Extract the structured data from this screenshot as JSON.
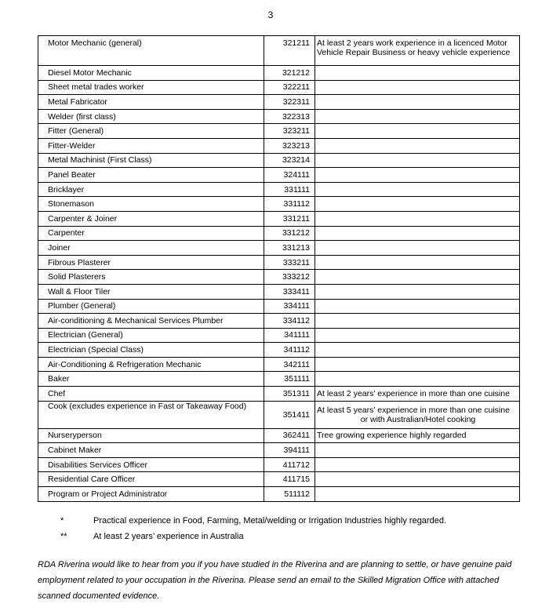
{
  "page_number": "3",
  "rows": [
    {
      "occupation": "Motor Mechanic (general)",
      "code": "321211",
      "requirement": "At least 2 years work experience in a licenced Motor Vehicle Repair Business or heavy vehicle experience"
    },
    {
      "occupation": "Diesel Motor Mechanic",
      "code": "321212",
      "requirement": ""
    },
    {
      "occupation": "Sheet metal trades worker",
      "code": "322211",
      "requirement": ""
    },
    {
      "occupation": "Metal Fabricator",
      "code": "322311",
      "requirement": ""
    },
    {
      "occupation": "Welder (first class)",
      "code": "322313",
      "requirement": ""
    },
    {
      "occupation": "Fitter (General)",
      "code": "323211",
      "requirement": ""
    },
    {
      "occupation": "Fitter-Welder",
      "code": "323213",
      "requirement": ""
    },
    {
      "occupation": "Metal Machinist (First Class)",
      "code": "323214",
      "requirement": ""
    },
    {
      "occupation": "Panel Beater",
      "code": "324111",
      "requirement": ""
    },
    {
      "occupation": "Bricklayer",
      "code": "331111",
      "requirement": ""
    },
    {
      "occupation": "Stonemason",
      "code": "331112",
      "requirement": ""
    },
    {
      "occupation": "Carpenter & Joiner",
      "code": "331211",
      "requirement": ""
    },
    {
      "occupation": "Carpenter",
      "code": "331212",
      "requirement": ""
    },
    {
      "occupation": "Joiner",
      "code": "331213",
      "requirement": ""
    },
    {
      "occupation": "Fibrous Plasterer",
      "code": "333211",
      "requirement": ""
    },
    {
      "occupation": "Solid Plasterers",
      "code": "333212",
      "requirement": ""
    },
    {
      "occupation": "Wall & Floor Tiler",
      "code": "333411",
      "requirement": ""
    },
    {
      "occupation": "Plumber (General)",
      "code": "334111",
      "requirement": ""
    },
    {
      "occupation": "Air-conditioning & Mechanical Services Plumber",
      "code": "334112",
      "requirement": ""
    },
    {
      "occupation": "Electrician (General)",
      "code": "341111",
      "requirement": ""
    },
    {
      "occupation": "Electrician (Special Class)",
      "code": "341112",
      "requirement": ""
    },
    {
      "occupation": "Air-Conditioning & Refrigeration Mechanic",
      "code": "342111",
      "requirement": ""
    },
    {
      "occupation": "Baker",
      "code": "351111",
      "requirement": ""
    },
    {
      "occupation": "Chef",
      "code": "351311",
      "requirement": "At least 2 years’ experience in more than one cuisine"
    },
    {
      "occupation": "Cook (excludes experience in Fast or Takeaway Food)",
      "code": "351411",
      "requirement": "At least 5 years’ experience in more than one cuisine",
      "requirement_line2": "or with Australian/Hotel cooking"
    },
    {
      "occupation": "Nurseryperson",
      "code": "362411",
      "requirement": "Tree growing experience highly regarded"
    },
    {
      "occupation": "Cabinet Maker",
      "code": "394111",
      "requirement": ""
    },
    {
      "occupation": "Disabilities Services Officer",
      "code": "411712",
      "requirement": ""
    },
    {
      "occupation": "Residential Care Officer",
      "code": "411715",
      "requirement": ""
    },
    {
      "occupation": "Program or Project Administrator",
      "code": "511112",
      "requirement": ""
    }
  ],
  "notes": [
    {
      "marker": "*",
      "text": "Practical experience in Food, Farming, Metal/welding or Irrigation Industries highly regarded."
    },
    {
      "marker": "**",
      "text": "At least 2 years’ experience in Australia"
    }
  ],
  "closing_paragraph": "RDA Riverina would like to hear from you if you have studied in the Riverina and are planning to settle, or have genuine paid employment related to your occupation in the Riverina.  Please send an email to the Skilled Migration Office with attached scanned documented evidence."
}
